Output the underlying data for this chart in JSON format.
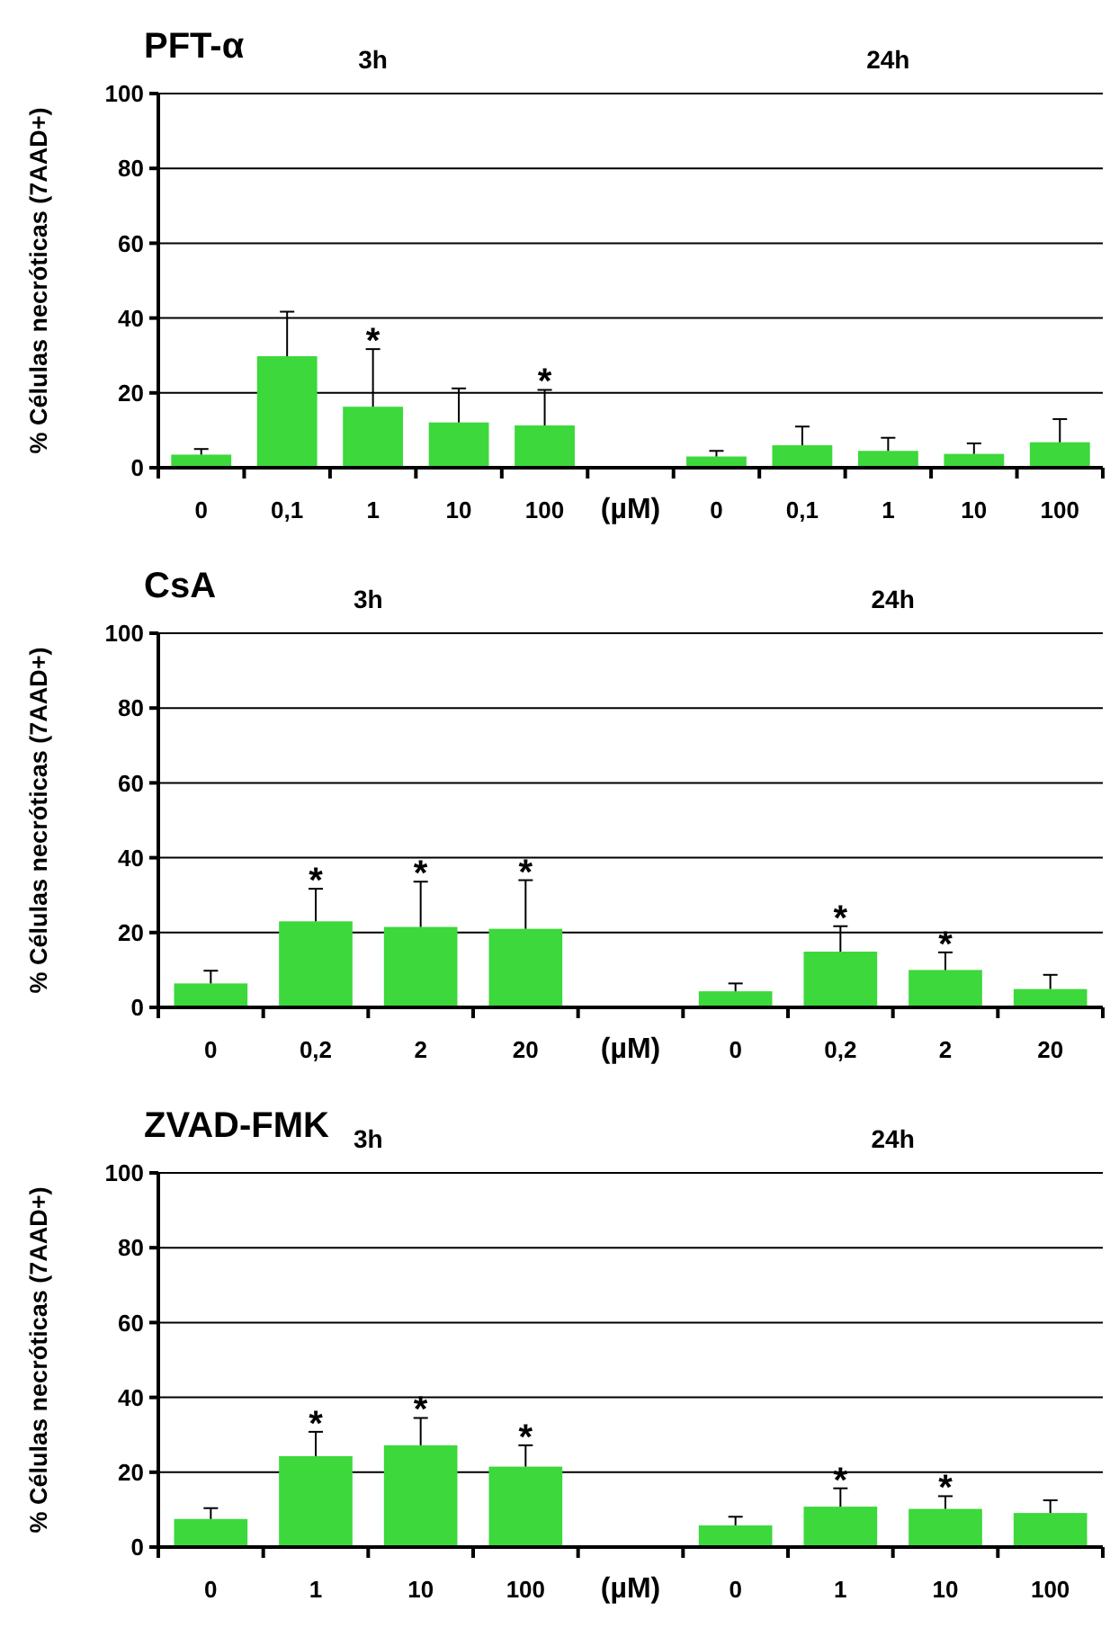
{
  "chart_data": [
    {
      "type": "bar",
      "title": "PFT-α",
      "ylabel": "% Células necróticas (7AAD+)",
      "categories": [
        "0",
        "0,1",
        "1",
        "10",
        "100",
        "(µM)",
        "0",
        "0,1",
        "1",
        "10",
        "100"
      ],
      "values": [
        3.5,
        29.8,
        16.3,
        12.1,
        11.3,
        null,
        3,
        6,
        4.5,
        3.7,
        6.8
      ],
      "errors": [
        [
          3.5,
          5
        ],
        [
          29.8,
          41.7
        ],
        [
          16.3,
          31.7
        ],
        [
          12.1,
          21.2
        ],
        [
          11.3,
          20.8
        ],
        null,
        [
          3,
          4.5
        ],
        [
          6,
          11
        ],
        [
          4.5,
          8
        ],
        [
          3.7,
          6.5
        ],
        [
          6.8,
          13
        ]
      ],
      "color": "#3cd83c",
      "ylim": [
        0,
        100
      ],
      "yticks": [
        0,
        20,
        40,
        60,
        80,
        100
      ],
      "grid": "y",
      "annotations": [
        "3h",
        "24h",
        {
          "text": "*",
          "x": "1",
          "y": 31.7
        },
        {
          "text": "*",
          "x": "100",
          "y": 20.8
        }
      ]
    },
    {
      "type": "bar",
      "title": "CsA",
      "ylabel": "% Células necróticas (7AAD+)",
      "categories": [
        "0",
        "0,2",
        "2",
        "20",
        "(µM)",
        "0",
        "0,2",
        "2",
        "20"
      ],
      "values": [
        6.4,
        23,
        21.5,
        21,
        null,
        4.3,
        14.9,
        10,
        4.9
      ],
      "errors": [
        [
          6.4,
          9.8
        ],
        [
          23,
          31.7
        ],
        [
          21.5,
          33.6
        ],
        [
          21,
          34
        ],
        null,
        [
          4.3,
          6.4
        ],
        [
          14.9,
          21.7
        ],
        [
          10,
          14.7
        ],
        [
          4.9,
          8.7
        ]
      ],
      "color": "#3cd83c",
      "ylim": [
        0,
        100
      ],
      "yticks": [
        0,
        20,
        40,
        60,
        80,
        100
      ],
      "grid": "y",
      "annotations": [
        "3h",
        "24h",
        {
          "text": "*",
          "x": "0,2",
          "y": 31.7
        },
        {
          "text": "*",
          "x": "2",
          "y": 33.6
        },
        {
          "text": "*",
          "x": "20",
          "y": 34
        },
        {
          "text": "*",
          "y": 21.7
        },
        {
          "text": "*",
          "y": 14.7
        }
      ]
    },
    {
      "type": "bar",
      "title": "ZVAD-FMK",
      "ylabel": "% Células necróticas (7AAD+)",
      "categories": [
        "0",
        "1",
        "10",
        "100",
        "(µM)",
        "0",
        "1",
        "10",
        "100"
      ],
      "values": [
        7.5,
        24.3,
        27.2,
        21.5,
        null,
        5.8,
        10.8,
        10.2,
        9.1
      ],
      "errors": [
        [
          7.5,
          10.4
        ],
        [
          24.3,
          30.8
        ],
        [
          27.2,
          34.5
        ],
        [
          21.5,
          27.2
        ],
        null,
        [
          5.8,
          8.1
        ],
        [
          10.8,
          15.7
        ],
        [
          10.2,
          13.6
        ],
        [
          9.1,
          12.5
        ]
      ],
      "color": "#3cd83c",
      "ylim": [
        0,
        100
      ],
      "yticks": [
        0,
        20,
        40,
        60,
        80,
        100
      ],
      "grid": "y",
      "annotations": [
        "3h",
        "24h",
        {
          "text": "*",
          "x": "1",
          "y": 30.8
        },
        {
          "text": "*",
          "x": "10",
          "y": 34.5
        },
        {
          "text": "*",
          "x": "100",
          "y": 27.2
        },
        {
          "text": "*",
          "y": 15.7
        },
        {
          "text": "*",
          "y": 13.6
        }
      ]
    }
  ]
}
